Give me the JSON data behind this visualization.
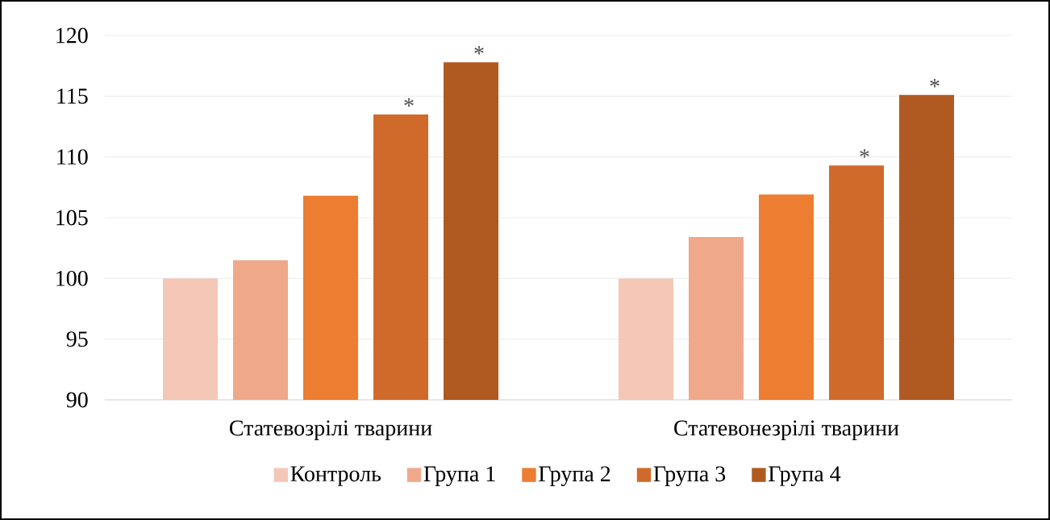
{
  "chart_data": {
    "type": "bar",
    "categories": [
      "Статевозрілі  тварини",
      "Статевонезрілі  тварини"
    ],
    "series": [
      {
        "name": "Контроль",
        "color": "#f4c7b6",
        "values": [
          100,
          100
        ]
      },
      {
        "name": "Група 1",
        "color": "#f0a88a",
        "values": [
          101.5,
          103.4
        ]
      },
      {
        "name": "Група 2",
        "color": "#ed7d31",
        "values": [
          106.8,
          106.9
        ]
      },
      {
        "name": "Група 3",
        "color": "#d06a2a",
        "values": [
          113.5,
          109.3
        ],
        "value_labels": [
          "*",
          "*"
        ]
      },
      {
        "name": "Група 4",
        "color": "#b05a22",
        "values": [
          117.8,
          115.1
        ],
        "value_labels": [
          "*",
          "*"
        ]
      }
    ],
    "ylim": [
      90,
      120
    ],
    "yticks": [
      90,
      95,
      100,
      105,
      110,
      115,
      120
    ],
    "grid": "y",
    "legend": "bottom"
  }
}
